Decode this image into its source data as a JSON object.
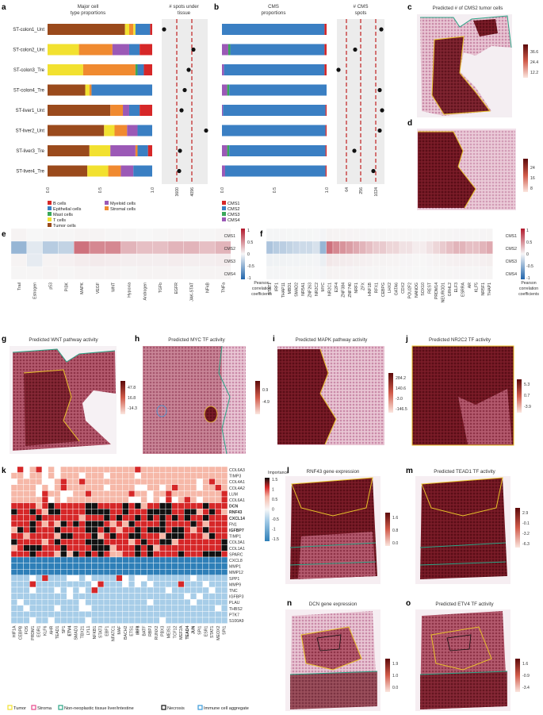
{
  "panels": {
    "a": {
      "label": "a",
      "title_left": [
        "Major cell",
        "type proportions"
      ],
      "title_right": [
        "# spots under",
        "tissue"
      ],
      "samples": [
        "ST-colon1_Unt",
        "ST-colon2_Unt",
        "ST-colon3_Tre",
        "ST-colon4_Tre",
        "ST-liver1_Unt",
        "ST-liver2_Unt",
        "ST-liver3_Tre",
        "ST-liver4_Tre"
      ],
      "x_ticks": [
        "0.0",
        "0.5",
        "1.0"
      ],
      "spot_ticks": [
        "3600",
        "4096"
      ],
      "legend": [
        {
          "name": "B cells",
          "color": "#d62728"
        },
        {
          "name": "Epithelial cells",
          "color": "#3a7fc3"
        },
        {
          "name": "Mast cells",
          "color": "#3aa85a"
        },
        {
          "name": "T cells",
          "color": "#f2e130"
        },
        {
          "name": "Tumor cells",
          "color": "#9a4a1c"
        },
        {
          "name": "Myeloid cells",
          "color": "#9b59b6"
        },
        {
          "name": "Stromal cells",
          "color": "#f08a30"
        }
      ]
    },
    "b": {
      "label": "b",
      "title_left": [
        "CMS",
        "proportions"
      ],
      "title_right": [
        "# CMS",
        "spots"
      ],
      "x_ticks": [
        "0.0",
        "0.5",
        "1.0"
      ],
      "spot_ticks": [
        "64",
        "256",
        "1024"
      ],
      "legend": [
        {
          "name": "CMS1",
          "color": "#d62728"
        },
        {
          "name": "CMS2",
          "color": "#3a7fc3"
        },
        {
          "name": "CMS3",
          "color": "#3aa85a"
        },
        {
          "name": "CMS4",
          "color": "#9b59b6"
        }
      ]
    },
    "c": {
      "label": "c",
      "title": "Predicted # of CMS2 tumor cells",
      "scale": [
        "36.6",
        "24.4",
        "12.2"
      ]
    },
    "d": {
      "label": "d",
      "scale": [
        "24",
        "16",
        "8"
      ]
    },
    "e": {
      "label": "e",
      "rows": [
        "CMS1",
        "CMS2",
        "CMS3",
        "CMS4"
      ],
      "cols": [
        "Trail",
        "Estrogen",
        "p53",
        "PI3K",
        "MAPK",
        "VEGF",
        "WNT",
        "Hypoxia",
        "Androgen",
        "TGFb",
        "EGFR",
        "JAK-STAT",
        "NFkB",
        "TNFa"
      ],
      "scale": [
        "1",
        "0.5",
        "0",
        "-0.5",
        "-1"
      ],
      "scale_label": [
        "Pearson",
        "correlation",
        "coefficients"
      ]
    },
    "f": {
      "label": "f",
      "rows": [
        "CMS1",
        "CMS2",
        "CMS3",
        "CMS4"
      ],
      "cols": [
        "STAT1",
        "IRF1",
        "THAP11",
        "MBD1",
        "SMAD2",
        "NR5A1",
        "ZNF263",
        "NR2C2",
        "MYC",
        "NR2C1",
        "E2F4",
        "ZNF384",
        "ZNF740",
        "NRF1",
        "ZFX",
        "HNF1B",
        "RFX1",
        "CEBPG",
        "LHX2",
        "GATA6",
        "CDX2",
        "POU2F2",
        "NANOG",
        "SOX10",
        "REST",
        "PRDM14",
        "NEUROD1",
        "GRHL2",
        "ELF3",
        "ESRRA",
        "AR",
        "KLF5",
        "NR5F1",
        "THAP1"
      ],
      "scale": [
        "1",
        "0.5",
        "0",
        "-0.5",
        "-1"
      ],
      "scale_label": [
        "Pearson",
        "correlation",
        "coefficients"
      ]
    },
    "g": {
      "label": "g",
      "title": "Predicted WNT pathway activity",
      "scale": [
        "47.8",
        "16.8",
        "-14.3"
      ]
    },
    "h": {
      "label": "h",
      "title": "Predicted MYC TF activity",
      "scale": [
        "0.9",
        "-4.9"
      ]
    },
    "i": {
      "label": "i",
      "title": "Predicted MAPK pathway activity",
      "scale": [
        "284.2",
        "140.6",
        "-3.0",
        "-146.5"
      ]
    },
    "j": {
      "label": "j",
      "title": "Predicted NR2C2 TF activity",
      "scale": [
        "5.3",
        "0.7",
        "-3.9"
      ]
    },
    "k": {
      "label": "k",
      "rows": [
        "COL6A3",
        "TIMP3",
        "COL4A1",
        "COL4A2",
        "LUM",
        "COL6A1",
        "DCN",
        "RNF43",
        "CXCL14",
        "FN1",
        "IGFBP7",
        "TIMP1",
        "COL3A1",
        "COL1A1",
        "SPARC",
        "CXCL8",
        "MMP1",
        "MMP12",
        "SPP1",
        "MMP9",
        "TNC",
        "IGFBP3",
        "PLAU",
        "THBS2",
        "PTK7",
        "S100A9"
      ],
      "highlight_rows": [
        "DCN",
        "RNF43",
        "CXCL14",
        "IGFBP7"
      ],
      "cols": [
        "HIF1A",
        "CEBPB",
        "FOS",
        "PRDM1",
        "EGR1",
        "KLF6",
        "AHR",
        "TEAD1",
        "SP1",
        "ETV4",
        "SMAD3",
        "TBX21",
        "LYL1",
        "NFKB1",
        "STAT3",
        "EBF1",
        "NFATC1",
        "MAF",
        "BACH2",
        "ETS1",
        "IRF8",
        "BATF",
        "RBPJ",
        "RUNX2",
        "PBX3",
        "MEIS1",
        "TCF12",
        "MEF2A",
        "TEAD4",
        "JUN",
        "SPI1",
        "ESR1",
        "STAT1",
        "MEOX2",
        "SPI1"
      ],
      "highlight_cols": [
        "ETV4",
        "IRF8",
        "TEAD4",
        "JUN"
      ],
      "importance_label": "Importance",
      "scale": [
        "1.5",
        "1",
        "0.5",
        "0",
        "-0.5",
        "-1",
        "-1.5"
      ]
    },
    "l": {
      "label": "l",
      "title": "RNF43 gene expression",
      "scale": [
        "1.6",
        "0.8",
        "0.0"
      ]
    },
    "m": {
      "label": "m",
      "title": "Predicted TEAD1 TF activity",
      "scale": [
        "2.9",
        "-0.1",
        "-3.2",
        "-6.3"
      ]
    },
    "n": {
      "label": "n",
      "title": "DCN gene expression",
      "scale": [
        "1.9",
        "1.0",
        "0.0"
      ]
    },
    "o": {
      "label": "o",
      "title": "Predicted ETV4 TF activity",
      "scale": [
        "1.6",
        "-0.9",
        "-3.4"
      ]
    }
  },
  "annotation_legend": [
    {
      "name": "Tumor",
      "color": "#f2e130"
    },
    {
      "name": "Stroma",
      "color": "#e64a8c"
    },
    {
      "name": "Non-neoplastic tissue liver/intestine",
      "color": "#2ba586"
    },
    {
      "name": "Necrosis",
      "color": "#111111"
    },
    {
      "name": "Immune cell aggregate",
      "color": "#3a9ad9"
    }
  ],
  "colors": {
    "dark_red": "#6b0d0d",
    "mid_red": "#c8453a",
    "light_pink": "#f6d0c8",
    "blue": "#2e7fb8",
    "light_blue": "#a7cde8",
    "tumor_outline": "#e8c22a",
    "normal_outline": "#2ba586"
  }
}
